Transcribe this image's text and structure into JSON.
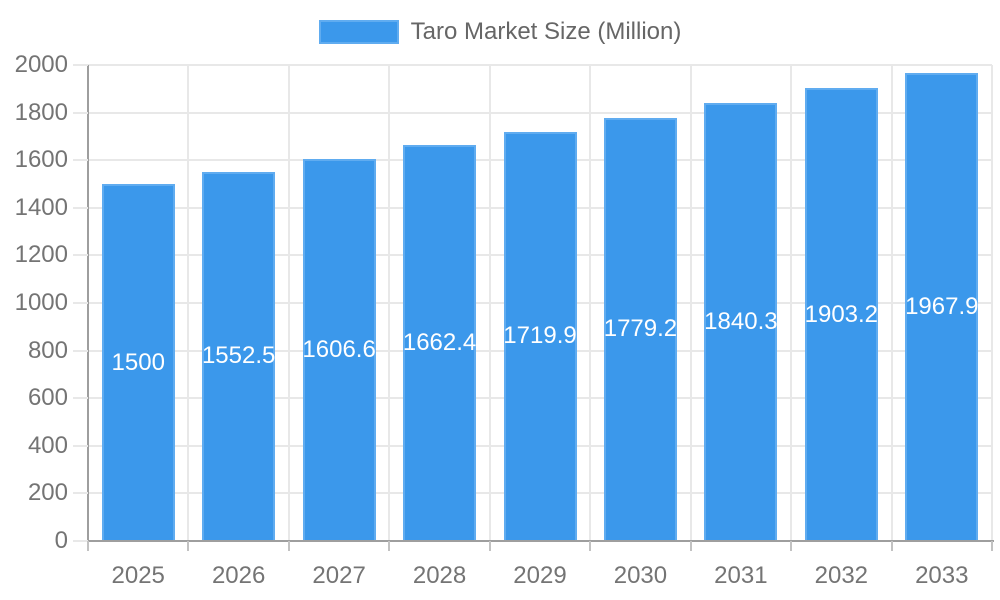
{
  "page": {
    "background": "#ffffff"
  },
  "chart_data": {
    "type": "bar",
    "title": "",
    "xlabel": "",
    "ylabel": "",
    "legend": {
      "label": "Taro Market Size (Million)",
      "position": "top"
    },
    "categories": [
      "2025",
      "2026",
      "2027",
      "2028",
      "2029",
      "2030",
      "2031",
      "2032",
      "2033"
    ],
    "values": [
      1500,
      1552.5,
      1606.6,
      1662.4,
      1719.9,
      1779.2,
      1840.3,
      1903.2,
      1967.9
    ],
    "value_labels": [
      "1500",
      "1552.5",
      "1606.6",
      "1662.4",
      "1719.9",
      "1779.2",
      "1840.3",
      "1903.2",
      "1967.9"
    ],
    "ylim": [
      0,
      2000
    ],
    "ytick_step": 200,
    "yticks": [
      0,
      200,
      400,
      600,
      800,
      1000,
      1200,
      1400,
      1600,
      1800,
      2000
    ],
    "grid": true,
    "colors": {
      "bar_fill": "#3b98eb",
      "bar_border": "#60acf0",
      "grid_line": "#e8e8e8",
      "tick_mark": "#c2c2c2",
      "axis_line": "#9e9e9e",
      "axis_text": "#747474",
      "bar_label_text": "#ffffff",
      "legend_text": "#666666",
      "background": "#ffffff"
    }
  }
}
